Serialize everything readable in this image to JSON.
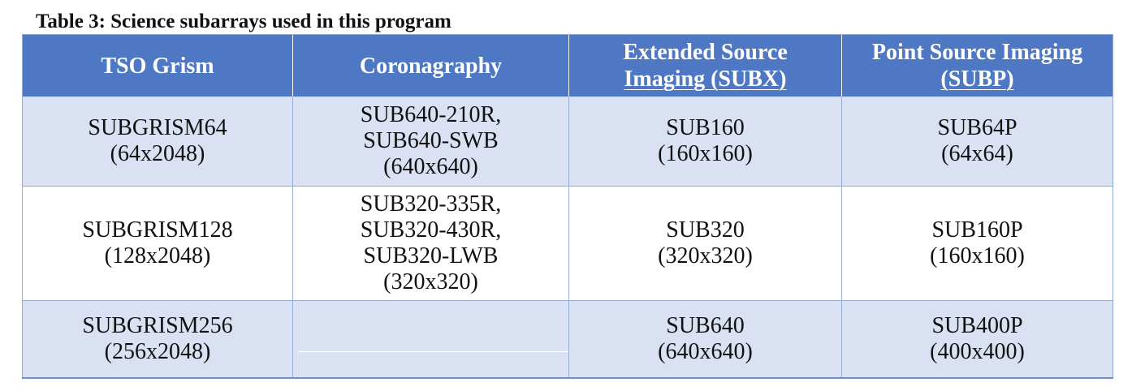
{
  "caption": "Table 3: Science subarrays used in this program",
  "headers": {
    "tso_grism": "TSO Grism",
    "coronagraphy": "Coronagraphy",
    "extended_line1": "Extended Source",
    "extended_line2": "Imaging (SUBX)",
    "point_line1": "Point Source Imaging",
    "point_line2": "(SUBP)"
  },
  "rows": [
    {
      "tso": [
        "SUBGRISM64",
        "(64x2048)"
      ],
      "coronagraphy": [
        "SUB640-210R,",
        "SUB640-SWB",
        "(640x640)"
      ],
      "extended": [
        "SUB160",
        "(160x160)"
      ],
      "point": [
        "SUB64P",
        "(64x64)"
      ]
    },
    {
      "tso": [
        "SUBGRISM128",
        "(128x2048)"
      ],
      "coronagraphy": [
        "SUB320-335R,",
        "SUB320-430R,",
        "SUB320-LWB",
        "(320x320)"
      ],
      "extended": [
        "SUB320",
        "(320x320)"
      ],
      "point": [
        "SUB160P",
        "(160x160)"
      ]
    },
    {
      "tso": [
        "SUBGRISM256",
        "(256x2048)"
      ],
      "coronagraphy": [],
      "extended": [
        "SUB640",
        "(640x640)"
      ],
      "point": [
        "SUB400P",
        "(400x400)"
      ]
    }
  ],
  "colors": {
    "header_bg": "#4f78c4",
    "band_bg": "#d9e1f2",
    "border": "#93acd9"
  }
}
